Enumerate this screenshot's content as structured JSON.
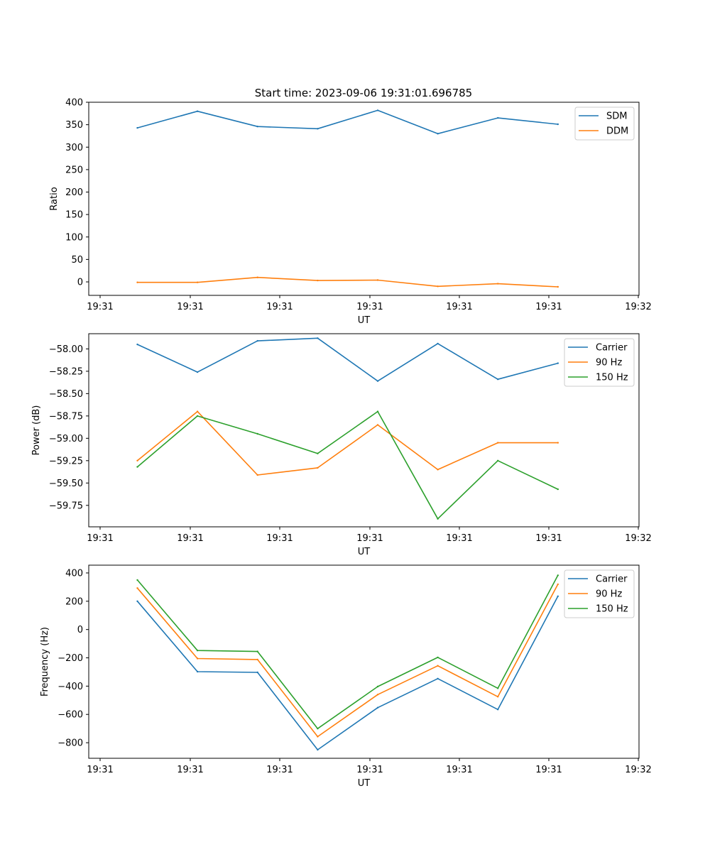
{
  "title": "Start time: 2023-09-06 19:31:01.696785",
  "chart_data": [
    {
      "type": "line",
      "title": "Start time: 2023-09-06 19:31:01.696785",
      "xlabel": "UT",
      "ylabel": "Ratio",
      "xticks": [
        "19:31",
        "19:31",
        "19:31",
        "19:31",
        "19:31",
        "19:31",
        "19:32"
      ],
      "x": [
        1,
        2,
        3,
        4,
        5,
        6,
        7,
        8
      ],
      "xlim": [
        0.19,
        9.35
      ],
      "ylim": [
        -30,
        400
      ],
      "yticks": [
        0,
        50,
        100,
        150,
        200,
        250,
        300,
        350,
        400
      ],
      "yticklabels": [
        "0",
        "50",
        "100",
        "150",
        "200",
        "250",
        "300",
        "350",
        "400"
      ],
      "legend": "top-right",
      "series": [
        {
          "name": "SDM",
          "color": "#1f77b4",
          "values": [
            343,
            380,
            346,
            341,
            382,
            330,
            365,
            351
          ]
        },
        {
          "name": "DDM",
          "color": "#ff7f0e",
          "values": [
            -1,
            -1,
            10,
            3,
            4,
            -10,
            -4,
            -11
          ]
        }
      ]
    },
    {
      "type": "line",
      "xlabel": "UT",
      "ylabel": "Power (dB)",
      "xticks": [
        "19:31",
        "19:31",
        "19:31",
        "19:31",
        "19:31",
        "19:31",
        "19:32"
      ],
      "x": [
        1,
        2,
        3,
        4,
        5,
        6,
        7,
        8
      ],
      "xlim": [
        0.19,
        9.35
      ],
      "ylim": [
        -59.99,
        -57.83
      ],
      "yticks": [
        -59.75,
        -59.5,
        -59.25,
        -59.0,
        -58.75,
        -58.5,
        -58.25,
        -58.0
      ],
      "yticklabels": [
        "−59.75",
        "−59.50",
        "−59.25",
        "−59.00",
        "−58.75",
        "−58.50",
        "−58.25",
        "−58.00"
      ],
      "legend": "top-right",
      "series": [
        {
          "name": "Carrier",
          "color": "#1f77b4",
          "values": [
            -57.95,
            -58.26,
            -57.91,
            -57.88,
            -58.36,
            -57.94,
            -58.34,
            -58.16
          ]
        },
        {
          "name": "90 Hz",
          "color": "#ff7f0e",
          "values": [
            -59.25,
            -58.7,
            -59.41,
            -59.33,
            -58.85,
            -59.35,
            -59.05,
            -59.05
          ]
        },
        {
          "name": "150 Hz",
          "color": "#2ca02c",
          "values": [
            -59.32,
            -58.75,
            -58.95,
            -59.17,
            -58.7,
            -59.9,
            -59.25,
            -59.57
          ]
        }
      ]
    },
    {
      "type": "line",
      "xlabel": "UT",
      "ylabel": "Frequency (Hz)",
      "xticks": [
        "19:31",
        "19:31",
        "19:31",
        "19:31",
        "19:31",
        "19:31",
        "19:32"
      ],
      "x": [
        1,
        2,
        3,
        4,
        5,
        6,
        7,
        8
      ],
      "xlim": [
        0.19,
        9.35
      ],
      "ylim": [
        -910,
        455
      ],
      "yticks": [
        -800,
        -600,
        -400,
        -200,
        0,
        200,
        400
      ],
      "yticklabels": [
        "−800",
        "−600",
        "−400",
        "−200",
        "0",
        "200",
        "400"
      ],
      "legend": "top-right",
      "series": [
        {
          "name": "Carrier",
          "color": "#1f77b4",
          "values": [
            200,
            -298,
            -303,
            -850,
            -552,
            -347,
            -565,
            235
          ]
        },
        {
          "name": "90 Hz",
          "color": "#ff7f0e",
          "values": [
            293,
            -205,
            -212,
            -757,
            -460,
            -256,
            -475,
            320
          ]
        },
        {
          "name": "150 Hz",
          "color": "#2ca02c",
          "values": [
            350,
            -148,
            -155,
            -700,
            -403,
            -197,
            -415,
            383
          ]
        }
      ]
    }
  ]
}
